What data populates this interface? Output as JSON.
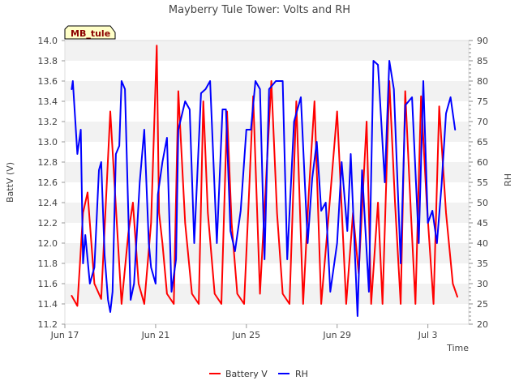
{
  "chart_data": {
    "type": "line",
    "title": "Mayberry Tule Tower: Volts and RH",
    "station_badge": "MB_tule",
    "xlabel": "Time",
    "ylabel_left": "BattV (V)",
    "ylabel_right": "RH",
    "x_tick_labels": [
      "Jun 17",
      "Jun 21",
      "Jun 25",
      "Jun 29",
      "Jul 3"
    ],
    "x_tick_days": [
      0,
      4,
      8,
      12,
      16
    ],
    "xlim_days": [
      0,
      17.8
    ],
    "ylim_left": [
      11.2,
      14.0
    ],
    "yticks_left": [
      "11.2",
      "11.4",
      "11.6",
      "11.8",
      "12.0",
      "12.2",
      "12.4",
      "12.6",
      "12.8",
      "13.0",
      "13.2",
      "13.4",
      "13.6",
      "13.8",
      "14.0"
    ],
    "ylim_right": [
      20,
      90
    ],
    "yticks_right": [
      "20",
      "25",
      "30",
      "35",
      "40",
      "45",
      "50",
      "55",
      "60",
      "65",
      "70",
      "75",
      "80",
      "85",
      "90"
    ],
    "grid": "horizontal alternating bands",
    "legend_position": "bottom-center",
    "series": [
      {
        "name": "Battery V",
        "axis": "left",
        "color": "#ff0000",
        "x": [
          0.3,
          0.55,
          0.8,
          1.0,
          1.3,
          1.6,
          2.0,
          2.5,
          2.8,
          3.0,
          3.25,
          3.5,
          3.8,
          4.05,
          4.15,
          4.3,
          4.5,
          4.8,
          5.0,
          5.3,
          5.6,
          5.9,
          6.1,
          6.3,
          6.6,
          6.9,
          7.15,
          7.35,
          7.6,
          7.9,
          8.1,
          8.3,
          8.6,
          9.1,
          9.35,
          9.6,
          9.9,
          10.2,
          10.5,
          10.75,
          11.0,
          11.3,
          11.6,
          12.0,
          12.4,
          12.7,
          12.95,
          13.3,
          13.5,
          13.8,
          14.0,
          14.3,
          14.55,
          14.8,
          15.0,
          15.25,
          15.45,
          15.7,
          15.95,
          16.25,
          16.5,
          16.8,
          17.1,
          17.3
        ],
        "y": [
          11.48,
          11.38,
          12.3,
          12.5,
          11.6,
          11.45,
          13.3,
          11.4,
          12.1,
          12.4,
          11.6,
          11.4,
          12.2,
          13.95,
          12.3,
          12.0,
          11.5,
          11.4,
          13.5,
          12.2,
          11.5,
          11.4,
          13.4,
          12.3,
          11.5,
          11.4,
          13.3,
          12.2,
          11.5,
          11.4,
          12.4,
          13.45,
          11.5,
          13.6,
          12.3,
          11.5,
          11.4,
          13.4,
          11.4,
          12.5,
          13.4,
          11.4,
          12.2,
          13.3,
          11.4,
          12.3,
          11.7,
          13.2,
          11.4,
          12.4,
          11.4,
          13.6,
          12.4,
          11.4,
          13.5,
          12.3,
          11.4,
          13.45,
          12.4,
          11.4,
          13.35,
          12.3,
          11.6,
          11.47
        ]
      },
      {
        "name": "RH",
        "axis": "right",
        "color": "#0000ff",
        "x": [
          0.3,
          0.35,
          0.55,
          0.7,
          0.8,
          0.9,
          1.1,
          1.3,
          1.5,
          1.6,
          1.75,
          1.9,
          2.0,
          2.1,
          2.25,
          2.4,
          2.5,
          2.65,
          2.9,
          3.05,
          3.3,
          3.5,
          3.7,
          3.8,
          4.0,
          4.1,
          4.3,
          4.5,
          4.7,
          4.9,
          5.0,
          5.3,
          5.5,
          5.7,
          6.0,
          6.2,
          6.4,
          6.7,
          6.95,
          7.1,
          7.3,
          7.5,
          7.75,
          8.0,
          8.2,
          8.4,
          8.6,
          8.8,
          9.0,
          9.3,
          9.6,
          9.8,
          10.1,
          10.4,
          10.7,
          10.9,
          11.1,
          11.3,
          11.5,
          11.7,
          12.0,
          12.2,
          12.45,
          12.6,
          12.9,
          13.1,
          13.4,
          13.6,
          13.8,
          14.1,
          14.3,
          14.5,
          14.8,
          15.0,
          15.3,
          15.6,
          15.8,
          16.0,
          16.2,
          16.4,
          16.6,
          16.8,
          17.0,
          17.2
        ],
        "y": [
          78,
          80,
          62,
          68,
          35,
          42,
          30,
          34,
          58,
          60,
          37,
          26,
          23,
          28,
          62,
          64,
          80,
          78,
          26,
          30,
          55,
          68,
          40,
          34,
          30,
          52,
          60,
          66,
          28,
          36,
          68,
          75,
          73,
          40,
          77,
          78,
          80,
          40,
          73,
          73,
          43,
          38,
          48,
          68,
          68,
          80,
          78,
          36,
          78,
          80,
          80,
          36,
          70,
          76,
          40,
          56,
          65,
          48,
          50,
          28,
          40,
          60,
          43,
          62,
          22,
          58,
          28,
          85,
          84,
          55,
          85,
          78,
          35,
          74,
          76,
          40,
          80,
          45,
          48,
          40,
          54,
          72,
          76,
          68
        ]
      }
    ]
  }
}
